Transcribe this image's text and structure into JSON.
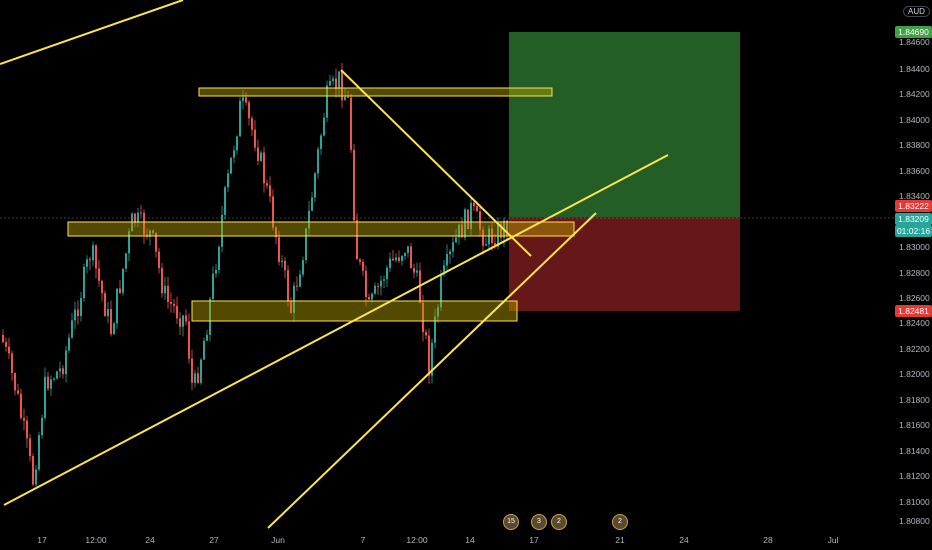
{
  "currency": "AUD",
  "price_axis": {
    "ticks": [
      "1.84600",
      "1.84400",
      "1.84200",
      "1.84000",
      "1.83800",
      "1.83600",
      "1.83400",
      "1.83000",
      "1.82800",
      "1.82600",
      "1.82400",
      "1.82200",
      "1.82000",
      "1.81800",
      "1.81600",
      "1.81400",
      "1.81200",
      "1.81000",
      "1.80800"
    ],
    "tags": {
      "target": "1.84690",
      "entry": "1.83222",
      "last_price": "1.83209",
      "countdown": "01:02:16",
      "stop": "1.82481"
    }
  },
  "time_axis": [
    "17",
    "12:00",
    "24",
    "27",
    "Jun",
    "7",
    "12:00",
    "14",
    "17",
    "21",
    "24",
    "28",
    "Jul"
  ],
  "event_markers": [
    "15",
    "3",
    "2",
    "2"
  ],
  "colors": {
    "profit_zone": "#2e7d32",
    "loss_zone": "#7f1d1d",
    "trend_lines": "#ffe34d",
    "up_candle": "#26a69a",
    "down_candle": "#ef5350"
  }
}
